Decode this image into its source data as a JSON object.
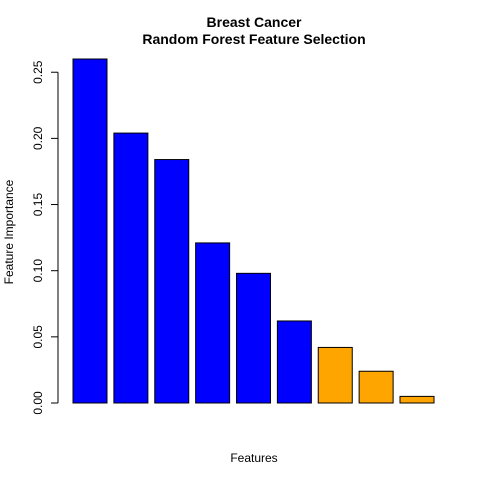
{
  "chart_data": {
    "type": "bar",
    "title": [
      "Breast Cancer",
      "Random Forest Feature Selection"
    ],
    "xlabel": "Features",
    "ylabel": "Feature Importance",
    "ylim": [
      0,
      0.26
    ],
    "yticks": [
      0.0,
      0.05,
      0.1,
      0.15,
      0.2,
      0.25
    ],
    "ytick_labels": [
      "0.00",
      "0.05",
      "0.10",
      "0.15",
      "0.20",
      "0.25"
    ],
    "categories": [
      "",
      "",
      "",
      "",
      "",
      "",
      "",
      "",
      ""
    ],
    "values": [
      0.26,
      0.204,
      0.184,
      0.121,
      0.098,
      0.062,
      0.042,
      0.024,
      0.005
    ],
    "colors": [
      "#0000ff",
      "#0000ff",
      "#0000ff",
      "#0000ff",
      "#0000ff",
      "#0000ff",
      "#ffa500",
      "#ffa500",
      "#ffa500"
    ],
    "bar_border_color": "#000000",
    "grid": false,
    "legend": "none"
  }
}
